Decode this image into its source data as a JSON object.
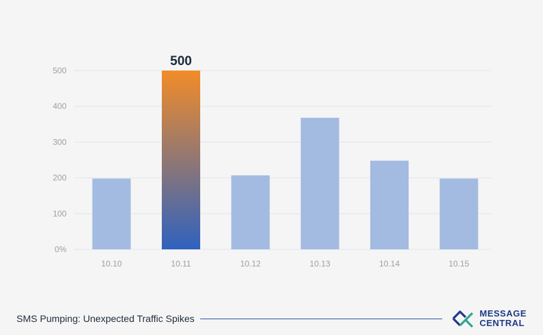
{
  "chart_data": {
    "type": "bar",
    "categories": [
      "10.10",
      "10.11",
      "10.12",
      "10.13",
      "10.14",
      "10.15"
    ],
    "values": [
      198,
      500,
      207,
      368,
      248,
      198
    ],
    "y_ticks": [
      "0%",
      "100",
      "200",
      "300",
      "400",
      "500"
    ],
    "ylim": [
      0,
      500
    ],
    "highlight_index": 1,
    "highlight_label": "500",
    "grid": true,
    "colors": {
      "bar": "#a3bbe1",
      "highlight_top": "#f28c28",
      "highlight_bottom": "#2f62bf",
      "grid": "#dfe5ee"
    }
  },
  "footer": {
    "caption": "SMS Pumping: Unexpected Traffic Spikes",
    "logo_line1": "MESSAGE",
    "logo_line2": "CENTRAL"
  }
}
